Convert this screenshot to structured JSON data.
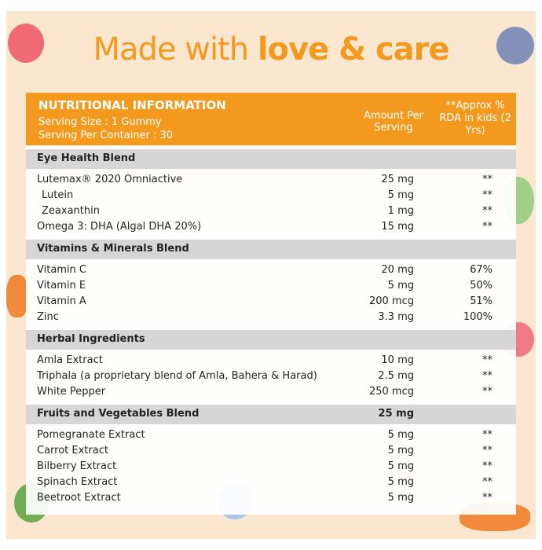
{
  "title": {
    "regular": "Made with",
    "bold": "love & care"
  },
  "header": {
    "heading": "NUTRITIONAL INFORMATION",
    "serving_size": "Serving Size : 1 Gummy",
    "servings_per_container": "Serving Per Container : 30",
    "amount_column": "Amount Per Serving",
    "rda_column": "**Approx % RDA in kids (2 Yrs)"
  },
  "sections": [
    {
      "name": "Eye Health Blend",
      "rows": [
        {
          "name": "Lutemax® 2020 Omniactive",
          "amount": "25 mg",
          "rda": "**"
        },
        {
          "name": "Lutein",
          "amount": "5 mg",
          "rda": "**",
          "indent": true
        },
        {
          "name": "Zeaxanthin",
          "amount": "1 mg",
          "rda": "**",
          "indent": true
        },
        {
          "name": "Omega 3: DHA (Algal DHA 20%)",
          "amount": "15 mg",
          "rda": "**"
        }
      ]
    },
    {
      "name": "Vitamins & Minerals Blend",
      "rows": [
        {
          "name": "Vitamin C",
          "amount": "20 mg",
          "rda": "67%"
        },
        {
          "name": "Vitamin E",
          "amount": "5 mg",
          "rda": "50%"
        },
        {
          "name": "Vitamin A",
          "amount": "200 mcg",
          "rda": "51%"
        },
        {
          "name": "Zinc",
          "amount": "3.3 mg",
          "rda": "100%"
        }
      ]
    },
    {
      "name": "Herbal Ingredients",
      "rows": [
        {
          "name": "Amla Extract",
          "amount": "10 mg",
          "rda": "**"
        },
        {
          "name": "Triphala (a proprietary blend of Amla, Bahera & Harad)",
          "amount": "2.5 mg",
          "rda": "**"
        },
        {
          "name": "White Pepper",
          "amount": "250 mcg",
          "rda": "**"
        }
      ]
    },
    {
      "name": "Fruits and Vegetables Blend",
      "amount": "25 mg",
      "rows": [
        {
          "name": "Pomegranate Extract",
          "amount": "5 mg",
          "rda": "**"
        },
        {
          "name": "Carrot Extract",
          "amount": "5 mg",
          "rda": "**"
        },
        {
          "name": "Bilberry Extract",
          "amount": "5 mg",
          "rda": "**"
        },
        {
          "name": "Spinach Extract",
          "amount": "5 mg",
          "rda": "**"
        },
        {
          "name": "Beetroot Extract",
          "amount": "5 mg",
          "rda": "**"
        }
      ]
    }
  ]
}
